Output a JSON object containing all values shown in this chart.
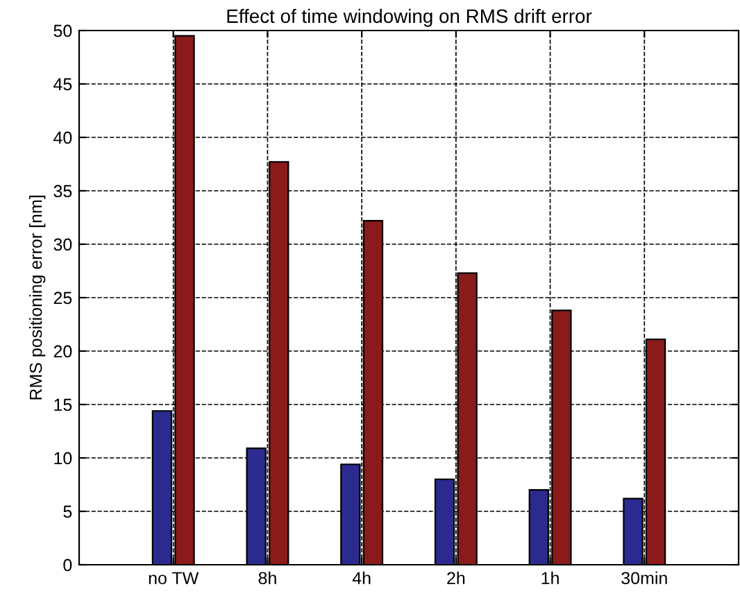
{
  "chart_data": {
    "type": "bar",
    "title": "Effect of time windowing on RMS drift error",
    "ylabel": "RMS positioning error [nm]",
    "categories": [
      "no TW",
      "8h",
      "4h",
      "2h",
      "1h",
      "30min"
    ],
    "series": [
      {
        "color": "#2b2b8f",
        "values": [
          14.4,
          10.9,
          9.4,
          8.0,
          7.0,
          6.2
        ]
      },
      {
        "color": "#8b1a1a",
        "values": [
          49.5,
          37.7,
          32.2,
          27.3,
          23.8,
          21.1
        ]
      }
    ],
    "ylim": [
      0,
      50
    ],
    "yticks": [
      0,
      5,
      10,
      15,
      20,
      25,
      30,
      35,
      40,
      45,
      50
    ],
    "grid": true,
    "line_style": "dashed"
  }
}
